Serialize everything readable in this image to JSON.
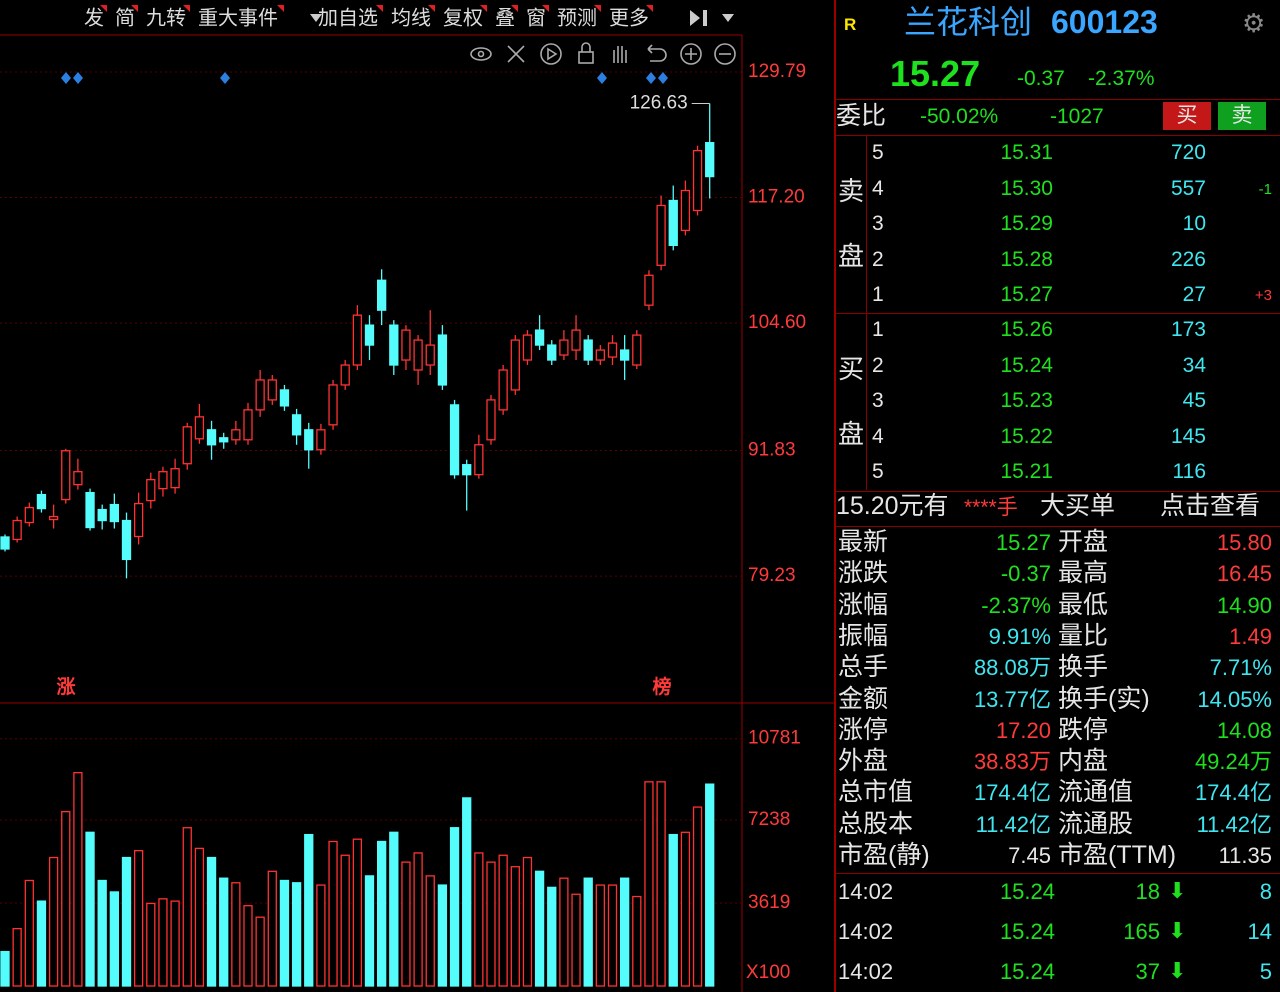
{
  "toolbar": {
    "items": [
      "发",
      "简",
      "九转",
      "重大事件",
      "加自选",
      "均线",
      "复权",
      "叠",
      "窗",
      "预测",
      "更多"
    ]
  },
  "chart_data": [
    {
      "type": "candlestick",
      "ylim": [
        66.8,
        133.5
      ],
      "yticks": [
        129.79,
        {
          "value": 117.2,
          "label": "117.20"
        },
        {
          "value": 104.6,
          "label": "104.60"
        },
        91.83,
        79.23
      ],
      "grid": true,
      "up_color": "#ff3232",
      "down_color": "#54fcfc",
      "high_label": 126.63,
      "annotations": [
        "涨",
        "榜"
      ],
      "series": {
        "open": [
          83.15,
          82.9,
          84.6,
          87.4,
          84.9,
          86.9,
          88.4,
          87.6,
          85.9,
          86.4,
          84.8,
          83.2,
          86.8,
          88.0,
          88.1,
          90.5,
          93.0,
          93.9,
          93.1,
          92.9,
          92.9,
          95.9,
          96.9,
          97.9,
          95.4,
          93.9,
          91.9,
          94.4,
          98.4,
          100.4,
          104.4,
          108.9,
          104.4,
          100.9,
          99.9,
          100.4,
          103.4,
          96.4,
          90.4,
          89.4,
          92.9,
          95.9,
          97.9,
          100.9,
          103.9,
          102.4,
          101.4,
          101.9,
          102.9,
          100.9,
          101.2,
          101.9,
          100.4,
          106.4,
          110.4,
          116.9,
          113.9,
          115.9,
          122.7
        ],
        "high": [
          83.4,
          85.2,
          86.6,
          87.8,
          86.4,
          92.0,
          91.0,
          88.0,
          86.4,
          87.5,
          85.6,
          87.6,
          89.6,
          90.2,
          91.0,
          94.6,
          96.5,
          94.8,
          93.6,
          94.8,
          96.6,
          99.9,
          99.4,
          98.4,
          96.0,
          94.6,
          94.5,
          98.9,
          100.9,
          106.4,
          105.4,
          110.0,
          104.9,
          104.4,
          103.4,
          105.9,
          104.4,
          96.9,
          90.9,
          93.4,
          97.4,
          100.4,
          103.4,
          103.9,
          105.4,
          102.9,
          103.9,
          105.4,
          103.4,
          102.4,
          103.4,
          103.4,
          103.9,
          109.9,
          117.4,
          118.4,
          118.9,
          122.4,
          126.63
        ],
        "low": [
          81.7,
          82.6,
          84.2,
          85.6,
          84.0,
          86.5,
          87.9,
          83.8,
          83.9,
          84.0,
          79.0,
          82.4,
          86.0,
          87.2,
          87.5,
          89.9,
          92.5,
          90.9,
          92.0,
          92.4,
          92.4,
          95.2,
          96.4,
          95.8,
          92.4,
          90.0,
          91.4,
          93.9,
          97.9,
          99.9,
          100.9,
          104.4,
          99.4,
          99.9,
          98.4,
          99.4,
          97.9,
          89.0,
          85.8,
          89.0,
          92.4,
          95.4,
          97.4,
          100.4,
          101.9,
          100.4,
          100.9,
          100.9,
          100.4,
          100.4,
          100.4,
          98.9,
          100.0,
          105.9,
          109.9,
          111.9,
          113.4,
          115.4,
          117.1
        ],
        "close": [
          81.95,
          84.8,
          86.1,
          86.0,
          85.2,
          91.8,
          89.7,
          84.1,
          84.8,
          84.7,
          80.9,
          86.5,
          88.9,
          89.7,
          90.0,
          94.2,
          95.2,
          92.4,
          92.7,
          93.9,
          95.9,
          98.9,
          98.9,
          96.3,
          93.4,
          91.9,
          93.9,
          98.4,
          100.4,
          105.4,
          102.4,
          105.9,
          100.4,
          103.9,
          102.9,
          102.4,
          98.4,
          89.4,
          89.4,
          92.4,
          96.9,
          99.9,
          102.9,
          103.4,
          102.4,
          100.9,
          102.9,
          103.9,
          100.9,
          101.9,
          102.6,
          100.9,
          103.4,
          109.4,
          116.4,
          112.4,
          117.9,
          121.9,
          119.3
        ]
      }
    },
    {
      "type": "bar",
      "ylim": [
        0,
        12250
      ],
      "yticks": [
        10781,
        7238,
        3619
      ],
      "unit_label": "X100",
      "grid": true,
      "values": [
        1500,
        2500,
        4600,
        3700,
        5600,
        7600,
        9300,
        6700,
        4600,
        4100,
        5600,
        5900,
        3600,
        3800,
        3700,
        6900,
        6000,
        5600,
        4700,
        4500,
        3500,
        3000,
        5000,
        4600,
        4500,
        6600,
        4400,
        6300,
        5700,
        6400,
        4800,
        6300,
        6700,
        5400,
        5800,
        4800,
        4400,
        6900,
        8200,
        5800,
        5400,
        5700,
        5200,
        5600,
        5000,
        4300,
        4700,
        4000,
        4700,
        4400,
        4400,
        4700,
        3900,
        8900,
        8900,
        6600,
        6700,
        7800,
        8800
      ]
    }
  ],
  "header": {
    "badge": "R",
    "name": "兰花科创",
    "code": "600123",
    "price": "15.27",
    "change": "-0.37",
    "change_pct": "-2.37%"
  },
  "weibi": {
    "label": "委比",
    "ratio": "-50.02%",
    "diff": "-1027",
    "buy": "买",
    "sell": "卖"
  },
  "order_book": {
    "ask_label": [
      "卖",
      "盘"
    ],
    "asks": [
      [
        "5",
        "15.31",
        "720"
      ],
      [
        "4",
        "15.30",
        "557",
        "-1"
      ],
      [
        "3",
        "15.29",
        "10"
      ],
      [
        "2",
        "15.28",
        "226"
      ],
      [
        "1",
        "15.27",
        "27",
        "+3"
      ]
    ],
    "bid_label": [
      "买",
      "盘"
    ],
    "bids": [
      [
        "1",
        "15.26",
        "173"
      ],
      [
        "2",
        "15.24",
        "34"
      ],
      [
        "3",
        "15.23",
        "45"
      ],
      [
        "4",
        "15.22",
        "145"
      ],
      [
        "5",
        "15.21",
        "116"
      ]
    ]
  },
  "big_order": [
    "15.20元有",
    "****手",
    "大买单",
    "点击查看"
  ],
  "stats": [
    [
      "最新",
      "15.27",
      "开盘",
      "15.80"
    ],
    [
      "涨跌",
      "-0.37",
      "最高",
      "16.45"
    ],
    [
      "涨幅",
      "-2.37%",
      "最低",
      "14.90"
    ],
    [
      "振幅",
      "9.91%",
      "量比",
      "1.49"
    ],
    [
      "总手",
      "88.08万",
      "换手",
      "7.71%"
    ],
    [
      "金额",
      "13.77亿",
      "换手(实)",
      "14.05%"
    ],
    [
      "涨停",
      "17.20",
      "跌停",
      "14.08"
    ],
    [
      "外盘",
      "38.83万",
      "内盘",
      "49.24万"
    ],
    [
      "总市值",
      "174.4亿",
      "流通值",
      "174.4亿"
    ],
    [
      "总股本",
      "11.42亿",
      "流通股",
      "11.42亿"
    ],
    [
      "市盈(静)",
      "7.45",
      "市盈(TTM)",
      "11.35"
    ]
  ],
  "ticks": [
    [
      "14:02",
      "15.24",
      "18",
      "8"
    ],
    [
      "14:02",
      "15.24",
      "165",
      "14"
    ],
    [
      "14:02",
      "15.24",
      "37",
      "5"
    ]
  ]
}
